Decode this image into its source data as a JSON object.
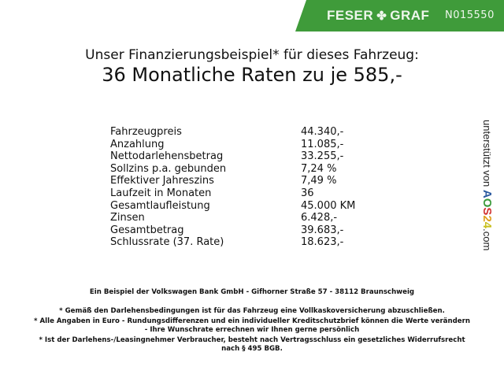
{
  "header": {
    "brand": "FESER GRAF",
    "brand_left": "FESER",
    "brand_right": "GRAF",
    "brand_color": "#3f9b3a",
    "vehicle_code": "N015550",
    "icon": "clover-icon"
  },
  "title": "Unser Finanzierungsbeispiel* für dieses Fahrzeug:",
  "subtitle": "36 Monatliche Raten zu je 585,-",
  "rows": [
    {
      "label": "Fahrzeugpreis",
      "value": "44.340,-"
    },
    {
      "label": "Anzahlung",
      "value": "11.085,-"
    },
    {
      "label": "Nettodarlehensbetrag",
      "value": "33.255,-"
    },
    {
      "label": "Sollzins p.a. gebunden",
      "value": "7,24 %"
    },
    {
      "label": "Effektiver Jahreszins",
      "value": "7,49 %"
    },
    {
      "label": "Laufzeit in Monaten",
      "value": "36"
    },
    {
      "label": "Gesamtlaufleistung",
      "value": "45.000 KM"
    },
    {
      "label": "Zinsen",
      "value": "6.428,-"
    },
    {
      "label": "Gesamtbetrag",
      "value": "39.683,-"
    },
    {
      "label": "Schlussrate (37. Rate)",
      "value": "18.623,-"
    }
  ],
  "side": {
    "text": "unterstützt von",
    "logo": "AOS24",
    "suffix": ".com"
  },
  "footer": {
    "bank": "Ein Beispiel der Volkswagen Bank GmbH - Gifhorner Straße 57 - 38112 Braunschweig",
    "note1": "* Gemäß den Darlehensbedingungen ist für das Fahrzeug eine Vollkaskoversicherung abzuschließen.",
    "note2a": "* Alle Angaben in Euro - Rundungsdifferenzen und ein individueller Kreditschutzbrief können die Werte verändern",
    "note2b": "- Ihre Wunschrate errechnen wir Ihnen gerne persönlich",
    "note3a": "* Ist der Darlehens-/Leasingnehmer Verbraucher, besteht nach Vertragsschluss ein gesetzliches Widerrufsrecht",
    "note3b": "nach § 495 BGB."
  }
}
